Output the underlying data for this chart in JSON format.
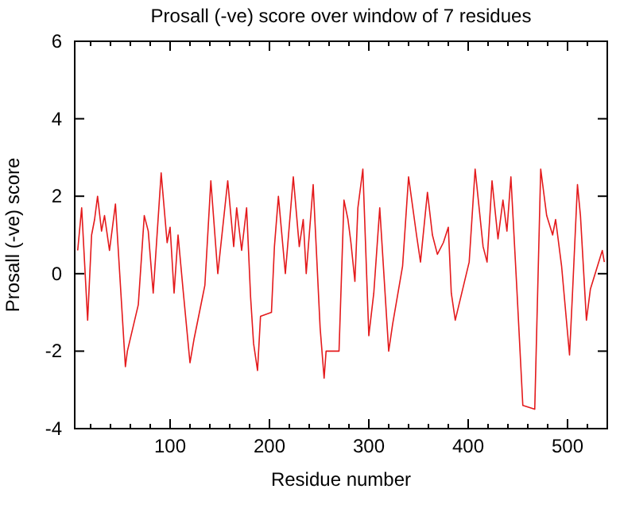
{
  "chart_data": {
    "type": "line",
    "title": "Prosall (-ve) score over window of 7 residues",
    "xlabel": "Residue number",
    "ylabel": "Prosall (-ve) score",
    "xlim": [
      4,
      540
    ],
    "ylim": [
      -4,
      6
    ],
    "xticks": [
      100,
      200,
      300,
      400,
      500
    ],
    "yticks": [
      -4,
      -2,
      0,
      2,
      4,
      6
    ],
    "grid": false,
    "marker": "none",
    "line_style": "solid",
    "series": [
      {
        "color": "#e41a1c",
        "x": [
          7,
          11,
          17,
          21,
          24,
          27,
          31,
          34,
          39,
          45,
          55,
          57,
          68,
          74,
          78,
          83,
          91,
          97,
          100,
          104,
          108,
          113,
          120,
          124,
          135,
          141,
          148,
          158,
          164,
          167,
          172,
          177,
          181,
          184,
          188,
          191,
          202,
          205,
          209,
          216,
          224,
          230,
          234,
          237,
          244,
          251,
          255,
          257,
          270,
          275,
          279,
          282,
          286,
          289,
          294,
          300,
          305,
          311,
          320,
          324,
          334,
          340,
          348,
          352,
          359,
          364,
          369,
          375,
          380,
          383,
          387,
          401,
          407,
          415,
          419,
          424,
          430,
          435,
          439,
          443,
          449,
          455,
          467,
          473,
          479,
          485,
          488,
          494,
          502,
          505,
          510,
          513,
          519,
          523,
          535,
          537
        ],
        "values": [
          0.6,
          1.7,
          -1.2,
          1.0,
          1.4,
          2.0,
          1.1,
          1.5,
          0.6,
          1.8,
          -2.4,
          -2.0,
          -0.8,
          1.5,
          1.1,
          -0.5,
          2.6,
          0.8,
          1.2,
          -0.5,
          1.0,
          -0.4,
          -2.3,
          -1.7,
          -0.3,
          2.4,
          0.0,
          2.4,
          0.7,
          1.7,
          0.6,
          1.7,
          -0.6,
          -1.8,
          -2.5,
          -1.1,
          -1.0,
          0.7,
          2.0,
          0.0,
          2.5,
          0.7,
          1.4,
          0.0,
          2.3,
          -1.4,
          -2.7,
          -2.0,
          -2.0,
          1.9,
          1.4,
          0.8,
          -0.2,
          1.7,
          2.7,
          -1.6,
          -0.5,
          1.7,
          -2.0,
          -1.3,
          0.2,
          2.5,
          1.0,
          0.3,
          2.1,
          1.0,
          0.5,
          0.8,
          1.2,
          -0.5,
          -1.2,
          0.3,
          2.7,
          0.7,
          0.3,
          2.4,
          0.9,
          1.9,
          1.1,
          2.5,
          -0.4,
          -3.4,
          -3.5,
          2.7,
          1.5,
          1.0,
          1.4,
          0.2,
          -2.1,
          -0.5,
          2.3,
          1.5,
          -1.2,
          -0.4,
          0.6,
          0.3
        ]
      }
    ]
  }
}
